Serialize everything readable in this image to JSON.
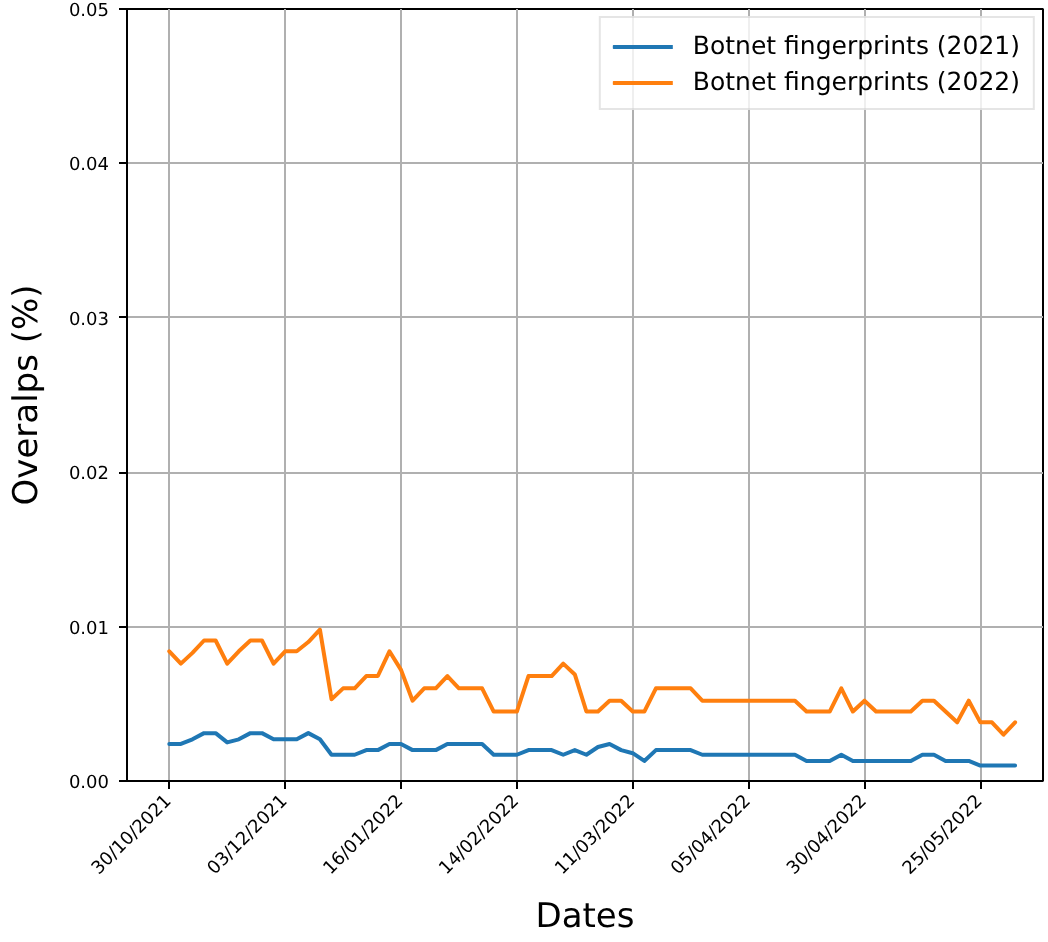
{
  "chart_data": {
    "type": "line",
    "xlabel": "Dates",
    "ylabel": "Overalps (%)",
    "categories": [
      "30/10/2021",
      null,
      null,
      null,
      null,
      null,
      null,
      null,
      null,
      null,
      "03/12/2021",
      null,
      null,
      null,
      null,
      null,
      null,
      null,
      null,
      null,
      "16/01/2022",
      null,
      null,
      null,
      null,
      null,
      null,
      null,
      null,
      null,
      "14/02/2022",
      null,
      null,
      null,
      null,
      null,
      null,
      null,
      null,
      null,
      "11/03/2022",
      null,
      null,
      null,
      null,
      null,
      null,
      null,
      null,
      null,
      "05/04/2022",
      null,
      null,
      null,
      null,
      null,
      null,
      null,
      null,
      null,
      "30/04/2022",
      null,
      null,
      null,
      null,
      null,
      null,
      null,
      null,
      null,
      "25/05/2022",
      null,
      null,
      null
    ],
    "series": [
      {
        "name": "Botnet fingerprints (2021)",
        "color": "#1f77b4",
        "values": [
          0.0024,
          0.0024,
          0.0027,
          0.0031,
          0.0031,
          0.0025,
          0.0027,
          0.0031,
          0.0031,
          0.0027,
          0.0027,
          0.0027,
          0.0031,
          0.0027,
          0.0017,
          0.0017,
          0.0017,
          0.002,
          0.002,
          0.0024,
          0.0024,
          0.002,
          0.002,
          0.002,
          0.0024,
          0.0024,
          0.0024,
          0.0024,
          0.0017,
          0.0017,
          0.0017,
          0.002,
          0.002,
          0.002,
          0.0017,
          0.002,
          0.0017,
          0.0022,
          0.0024,
          0.002,
          0.0018,
          0.0013,
          0.002,
          0.002,
          0.002,
          0.002,
          0.0017,
          0.0017,
          0.0017,
          0.0017,
          0.0017,
          0.0017,
          0.0017,
          0.0017,
          0.0017,
          0.0013,
          0.0013,
          0.0013,
          0.0017,
          0.0013,
          0.0013,
          0.0013,
          0.0013,
          0.0013,
          0.0013,
          0.0017,
          0.0017,
          0.0013,
          0.0013,
          0.0013,
          0.001,
          0.001,
          0.001,
          0.001
        ]
      },
      {
        "name": "Botnet fingerprints (2022)",
        "color": "#ff7f0e",
        "values": [
          0.0084,
          0.0076,
          0.0083,
          0.0091,
          0.0091,
          0.0076,
          0.0084,
          0.0091,
          0.0091,
          0.0076,
          0.0084,
          0.0084,
          0.009,
          0.0098,
          0.0053,
          0.006,
          0.006,
          0.0068,
          0.0068,
          0.0084,
          0.0072,
          0.0052,
          0.006,
          0.006,
          0.0068,
          0.006,
          0.006,
          0.006,
          0.0045,
          0.0045,
          0.0045,
          0.0068,
          0.0068,
          0.0068,
          0.0076,
          0.0069,
          0.0045,
          0.0045,
          0.0052,
          0.0052,
          0.0045,
          0.0045,
          0.006,
          0.006,
          0.006,
          0.006,
          0.0052,
          0.0052,
          0.0052,
          0.0052,
          0.0052,
          0.0052,
          0.0052,
          0.0052,
          0.0052,
          0.0045,
          0.0045,
          0.0045,
          0.006,
          0.0045,
          0.0052,
          0.0045,
          0.0045,
          0.0045,
          0.0045,
          0.0052,
          0.0052,
          0.0045,
          0.0038,
          0.0052,
          0.0038,
          0.0038,
          0.003,
          0.0038
        ]
      }
    ],
    "ylim": [
      0,
      0.05
    ],
    "yticks": [
      {
        "value": 0,
        "label": "0.00"
      },
      0.01,
      0.02,
      0.03,
      0.04,
      0.05
    ],
    "grid": true,
    "legend": "top right"
  }
}
